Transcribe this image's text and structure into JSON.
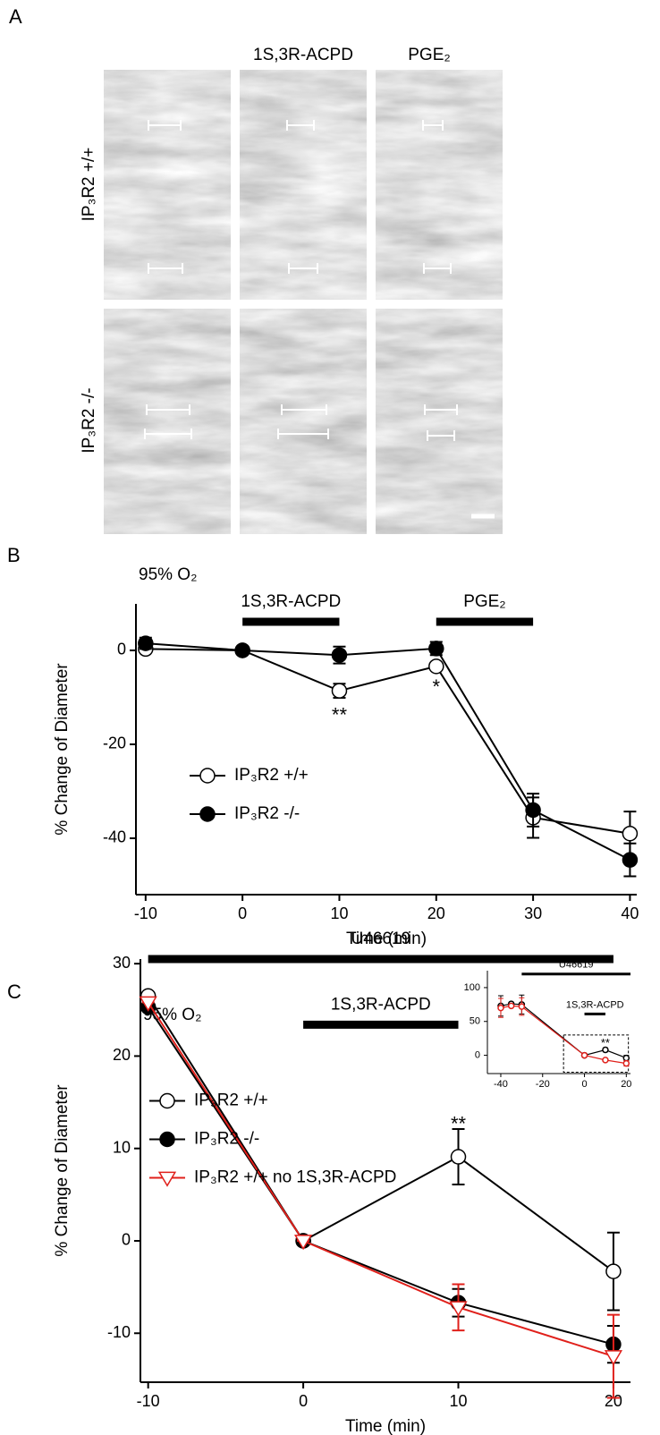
{
  "panel_a": {
    "letter": "A",
    "columns": [
      "1S,3R-ACPD",
      "PGE₂"
    ],
    "rows": [
      "IP₃R2 +/+",
      "IP₃R2 -/-"
    ]
  },
  "chart_data": [
    {
      "type": "line",
      "panel": "B",
      "title": "95% O₂",
      "x_label": "Time (min)",
      "y_label": "% Change of Diameter",
      "x": [
        -10,
        0,
        10,
        20,
        30,
        40
      ],
      "xlim": [
        -11,
        40.7
      ],
      "ylim": [
        -52,
        9.9
      ],
      "xticks": [
        -10,
        0,
        10,
        20,
        30,
        40
      ],
      "yticks": [
        -40,
        -20,
        0
      ],
      "series": [
        {
          "name": "IP₃R2 +/+",
          "marker": "open-circle",
          "color": "#000000",
          "values": [
            0.3,
            0,
            -8.6,
            -3.4,
            -35.6,
            -39
          ],
          "errors": [
            0.5,
            0,
            1.5,
            0.7,
            4.3,
            4.7
          ]
        },
        {
          "name": "IP₃R2 -/-",
          "marker": "filled-circle",
          "color": "#000000",
          "values": [
            1.5,
            0,
            -1,
            0.4,
            -34,
            -44.6
          ],
          "errors": [
            1.2,
            0,
            1.8,
            1.4,
            3.5,
            3.5
          ]
        }
      ],
      "bars": [
        {
          "label": "1S,3R-ACPD",
          "x": [
            0,
            10
          ],
          "y": 6.1
        },
        {
          "label": "PGE₂",
          "x": [
            20,
            30
          ],
          "y": 6.1
        }
      ],
      "annotations": [
        {
          "text": "**",
          "x": 10,
          "y": -14
        },
        {
          "text": "*",
          "x": 20,
          "y": -8
        }
      ],
      "legend": "lower left"
    },
    {
      "type": "line",
      "panel": "C",
      "title": "95% O₂",
      "x_label": "Time (min)",
      "y_label": "% Change of Diameter",
      "x": [
        -10,
        0,
        10,
        20
      ],
      "xlim": [
        -10.5,
        21.1
      ],
      "ylim": [
        -15.3,
        30.5
      ],
      "xticks": [
        -10,
        0,
        10,
        20
      ],
      "yticks": [
        -10,
        0,
        10,
        20,
        30
      ],
      "series": [
        {
          "name": "IP₃R2 +/+",
          "marker": "open-circle",
          "color": "#000000",
          "values": [
            26.5,
            0,
            9.1,
            -3.3
          ],
          "errors": [
            0,
            0,
            3,
            4.2
          ]
        },
        {
          "name": "IP₃R2 -/-",
          "marker": "filled-circle",
          "color": "#000000",
          "values": [
            25.3,
            0,
            -6.7,
            -11.2
          ],
          "errors": [
            0,
            0,
            1.5,
            2
          ]
        },
        {
          "name": "IP₃R2 +/+ no 1S,3R-ACPD",
          "marker": "open-triangle",
          "color": "#e0201b",
          "values": [
            25.8,
            0,
            -7.2,
            -12.5
          ],
          "errors": [
            0,
            0,
            2.5,
            4.5
          ]
        }
      ],
      "bars": [
        {
          "label": "U46619",
          "x": [
            -10,
            20
          ],
          "y": 30.5
        },
        {
          "label": "1S,3R-ACPD",
          "x": [
            0,
            10
          ],
          "y": 23.4
        }
      ],
      "annotations": [
        {
          "text": "**",
          "x": 10,
          "y": 12.5
        }
      ],
      "legend": "center left"
    },
    {
      "type": "line",
      "inset": true,
      "x": [
        -40,
        -35,
        -30,
        0,
        10,
        20
      ],
      "xlim": [
        -46.4,
        22
      ],
      "ylim": [
        -27,
        125
      ],
      "xticks": [
        -40,
        -20,
        0,
        20
      ],
      "yticks": [
        0,
        50,
        100
      ],
      "series": [
        {
          "marker": "open-circle",
          "color": "#000000",
          "values": [
            73,
            76,
            75,
            0,
            8,
            -4
          ],
          "errors": [
            15,
            0,
            14,
            0,
            3,
            4
          ]
        },
        {
          "marker": "open-circle",
          "color": "#e0201b",
          "values": [
            70,
            73,
            72,
            0,
            -7,
            -12
          ],
          "errors": [
            14,
            0,
            13,
            0,
            2,
            4
          ]
        }
      ],
      "bars": [
        {
          "label": "U46619",
          "x": [
            -30,
            22
          ],
          "y": 120
        },
        {
          "label": "1S,3R-ACPD",
          "x": [
            0,
            10
          ],
          "y": 61
        }
      ],
      "annotations": [
        {
          "text": "**",
          "x": 10,
          "y": 17
        }
      ],
      "box": {
        "x": [
          -10,
          21
        ],
        "y": [
          -25,
          30
        ]
      }
    }
  ]
}
